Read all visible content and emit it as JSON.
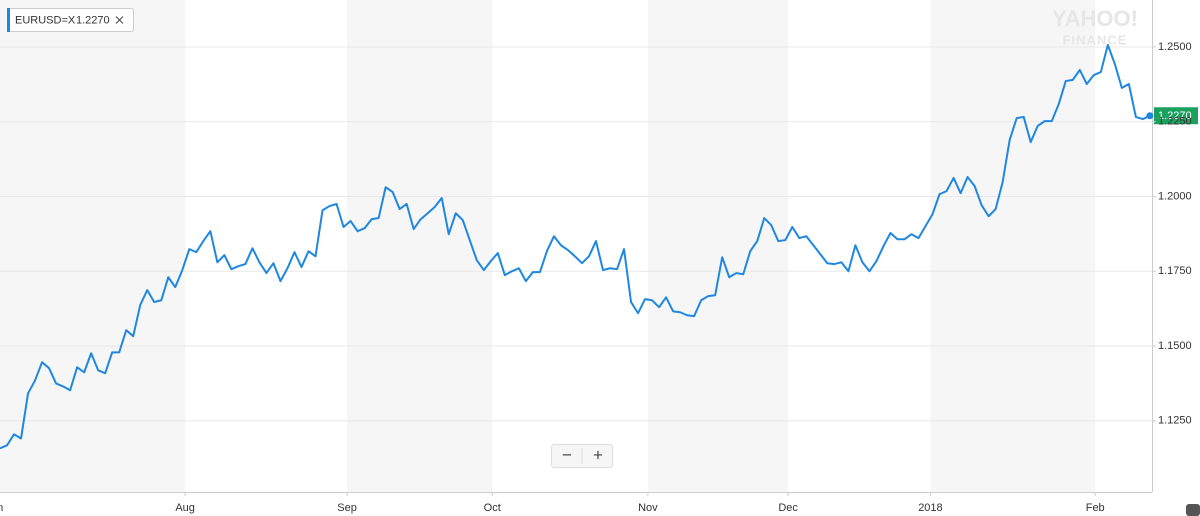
{
  "chart_data": {
    "type": "line",
    "symbol": "EURUSD=X",
    "price_label": "1.2270",
    "watermark": [
      "YAHOO!",
      "FINANCE"
    ],
    "zoom": [
      "−",
      "+"
    ],
    "color": "#1f87e0",
    "badge_color": "#1aa15f",
    "xlim": [
      0,
      164.3
    ],
    "xticks": [
      {
        "value": -0.8,
        "label": "Jun"
      },
      {
        "value": 26.4,
        "label": "Aug"
      },
      {
        "value": 49.5,
        "label": "Sep"
      },
      {
        "value": 70.2,
        "label": "Oct"
      },
      {
        "value": 92.4,
        "label": "Nov"
      },
      {
        "value": 112.4,
        "label": "Dec"
      },
      {
        "value": 132.7,
        "label": "2018"
      },
      {
        "value": 156.2,
        "label": "Feb"
      }
    ],
    "ylim": [
      1.1012,
      1.2657
    ],
    "yticks": [
      {
        "value": 1.125,
        "label": "1.1250"
      },
      {
        "value": 1.15,
        "label": "1.1500"
      },
      {
        "value": 1.175,
        "label": "1.1750"
      },
      {
        "value": 1.2,
        "label": "1.2000"
      },
      {
        "value": 1.225,
        "label": "1.2250"
      },
      {
        "value": 1.25,
        "label": "1.2500"
      }
    ],
    "grid": true,
    "values": [
      1.1158,
      1.1168,
      1.1205,
      1.1191,
      1.1342,
      1.1385,
      1.1446,
      1.1426,
      1.1375,
      1.1365,
      1.1352,
      1.1429,
      1.1412,
      1.1476,
      1.1419,
      1.1409,
      1.1479,
      1.1479,
      1.1553,
      1.1533,
      1.1637,
      1.1687,
      1.1647,
      1.1653,
      1.173,
      1.1697,
      1.1754,
      1.1824,
      1.1814,
      1.1851,
      1.1884,
      1.178,
      1.1804,
      1.1757,
      1.1767,
      1.1774,
      1.1827,
      1.178,
      1.1744,
      1.1777,
      1.1717,
      1.176,
      1.1814,
      1.1764,
      1.1817,
      1.18,
      1.1954,
      1.1968,
      1.1975,
      1.1898,
      1.1918,
      1.1884,
      1.1894,
      1.1924,
      1.1928,
      1.2031,
      1.2015,
      1.1958,
      1.1975,
      1.1891,
      1.1924,
      1.1944,
      1.1965,
      1.1995,
      1.1874,
      1.1944,
      1.1921,
      1.1854,
      1.1787,
      1.1754,
      1.1784,
      1.1811,
      1.1737,
      1.175,
      1.176,
      1.1717,
      1.1747,
      1.1747,
      1.1817,
      1.1867,
      1.1837,
      1.1821,
      1.18,
      1.1777,
      1.18,
      1.1851,
      1.1754,
      1.176,
      1.1757,
      1.1824,
      1.1647,
      1.161,
      1.1657,
      1.1653,
      1.163,
      1.1663,
      1.1616,
      1.1613,
      1.1603,
      1.16,
      1.1653,
      1.1667,
      1.167,
      1.1797,
      1.173,
      1.1744,
      1.174,
      1.1817,
      1.1851,
      1.1928,
      1.1904,
      1.1851,
      1.1854,
      1.1898,
      1.1861,
      1.1867,
      1.1837,
      1.1807,
      1.1777,
      1.1774,
      1.178,
      1.175,
      1.1837,
      1.178,
      1.175,
      1.1784,
      1.1834,
      1.1878,
      1.1857,
      1.1857,
      1.1874,
      1.1861,
      1.1901,
      1.1941,
      1.2008,
      1.2018,
      1.2062,
      1.2011,
      1.2065,
      1.2035,
      1.1971,
      1.1934,
      1.1958,
      1.2048,
      1.2189,
      1.2262,
      1.2266,
      1.2182,
      1.2236,
      1.2252,
      1.2252,
      1.2309,
      1.2386,
      1.239,
      1.2423,
      1.2376,
      1.2406,
      1.2416,
      1.2507,
      1.2443,
      1.2363,
      1.2376,
      1.2266,
      1.2259,
      1.227
    ]
  }
}
